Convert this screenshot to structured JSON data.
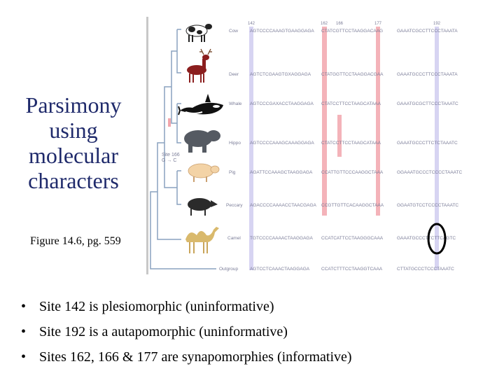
{
  "title": {
    "lines": [
      "Parsimony",
      "using",
      "molecular",
      "characters"
    ]
  },
  "caption": "Figure 14.6, pg. 559",
  "figure": {
    "site_positions": [
      "142",
      "162",
      "166",
      "177",
      "192"
    ],
    "site_label": {
      "line1": "Site 166",
      "line2": "G → C"
    },
    "taxa": [
      {
        "name": "Cow",
        "animal": "cow-icon",
        "seq": [
          "AGTCCCCAAAGTGAAGGAGA",
          "CTATCGTTCCTAAGGACAAG",
          "GAAATCGCCTTCCCTAAATA"
        ]
      },
      {
        "name": "Deer",
        "animal": "deer-icon",
        "seq": [
          "AGTCTCGAAGTGXAGGAGA",
          "CTATGGTTCCTAAGGACGAA",
          "GAAATGCCCTTCCCTAAATA"
        ]
      },
      {
        "name": "Whale",
        "animal": "whale-icon",
        "seq": [
          "AGTCCCGAXACCTAAGGAGA",
          "CTATCCTTCCTAAGCATAAA",
          "GAAATGCGCTTCCCTAAATC"
        ]
      },
      {
        "name": "Hippo",
        "animal": "hippo-icon",
        "seq": [
          "AGTCCCCAAAGCAAAGGAGA",
          "CTATCCTTCCTAAGCATAAA",
          "GAAATGCCCTTCTCTAAATC"
        ]
      },
      {
        "name": "Pig",
        "animal": "pig-icon",
        "seq": [
          "AGATTCCAAAGCTAAGGAGA",
          "CCATTGTTCCCAAGGCTAAA",
          "GGAAATGCCCTCCCCTAAATC"
        ]
      },
      {
        "name": "Peccary",
        "animal": "peccary-icon",
        "seq": [
          "AGACCCCAAAACCTAACGAGA",
          "CCGTTGTTCACAAGGCTAAA",
          "GGAATGTCCTCCCCTAAATC"
        ]
      },
      {
        "name": "Camel",
        "animal": "camel-icon",
        "seq": [
          "TGTCCCCAAAACTAAGGAGA",
          "CCATCATTCCTAAGGGCAAA",
          "GAAATGCCCTTCTTCAGTC"
        ]
      },
      {
        "name": "Outgroup",
        "animal": "",
        "seq": [
          "AGTCCTCAAACTAAGGAGA",
          "CCATCTTTCCTAAGGTCAAA",
          "CTTATGCCCTCCCTAAATC"
        ]
      }
    ]
  },
  "colors": {
    "title": "#1f2a6b",
    "informative_sites": "#f2a6ad",
    "uninformative_sites": "#c9c6ee",
    "tree": "#8aa2bf",
    "sequence_text": "#7b7d98"
  },
  "bullets": [
    "Site 142 is plesiomorphic (uninformative)",
    "Site 192 is a autapomorphic (uninformative)",
    "Sites 162, 166 & 177 are synapomorphies (informative)"
  ]
}
